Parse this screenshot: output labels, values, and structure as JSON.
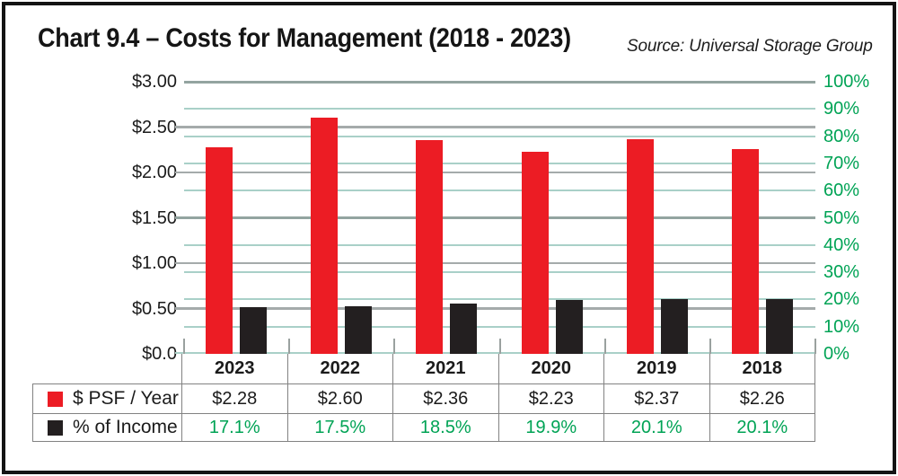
{
  "header": {
    "title": "Chart 9.4 – Costs for Management (2018 - 2023)",
    "source": "Source: Universal Storage Group"
  },
  "colors": {
    "bar_red": "#EC1C24",
    "bar_black": "#231F20",
    "green_text": "#00A355",
    "grid_green": "#A9D0C8",
    "grid_gray": "#A5ABAB",
    "grid_strong": "#93A4A0",
    "tick_gray": "#9AA19F",
    "table_border": "#828282",
    "frame_black": "#141414"
  },
  "chart_data": {
    "type": "bar",
    "title": "Chart 9.4 – Costs for Management (2018 - 2023)",
    "source": "Source: Universal Storage Group",
    "categories": [
      "2023",
      "2022",
      "2021",
      "2020",
      "2019",
      "2018"
    ],
    "series": [
      {
        "name": "$ PSF / Year",
        "axis": "left",
        "color_key": "bar_red",
        "values": [
          2.28,
          2.6,
          2.36,
          2.23,
          2.37,
          2.26
        ],
        "value_labels": [
          "$2.28",
          "$2.60",
          "$2.36",
          "$2.23",
          "$2.37",
          "$2.26"
        ]
      },
      {
        "name": "% of Income",
        "axis": "right",
        "color_key": "bar_black",
        "values": [
          17.1,
          17.5,
          18.5,
          19.9,
          20.1,
          20.1
        ],
        "value_labels": [
          "17.1%",
          "17.5%",
          "18.5%",
          "19.9%",
          "20.1%",
          "20.1%"
        ]
      }
    ],
    "left_axis": {
      "min": 0,
      "max": 3,
      "tick_step": 0.5,
      "tick_labels": [
        "$3.00",
        "$2.50",
        "$2.00",
        "$1.50",
        "$1.00",
        "$0.50",
        "$0.0"
      ]
    },
    "right_axis": {
      "min": 0,
      "max": 100,
      "tick_step": 10,
      "tick_labels": [
        "100%",
        "90%",
        "80%",
        "70%",
        "60%",
        "50%",
        "40%",
        "30%",
        "20%",
        "10%",
        "0%"
      ]
    },
    "grid": {
      "green_lines_every_percent": 10,
      "gray_lines_every_dollar": 0.5,
      "grid_on": true
    },
    "legend_position": "table-left"
  },
  "table": {
    "year_headers": [
      "2023",
      "2022",
      "2021",
      "2020",
      "2019",
      "2018"
    ],
    "rows": [
      {
        "label": "$ PSF / Year",
        "swatch": "red",
        "values": [
          "$2.28",
          "$2.60",
          "$2.36",
          "$2.23",
          "$2.37",
          "$2.26"
        ]
      },
      {
        "label": "% of Income",
        "swatch": "black",
        "values": [
          "17.1%",
          "17.5%",
          "18.5%",
          "19.9%",
          "20.1%",
          "20.1%"
        ]
      }
    ]
  }
}
